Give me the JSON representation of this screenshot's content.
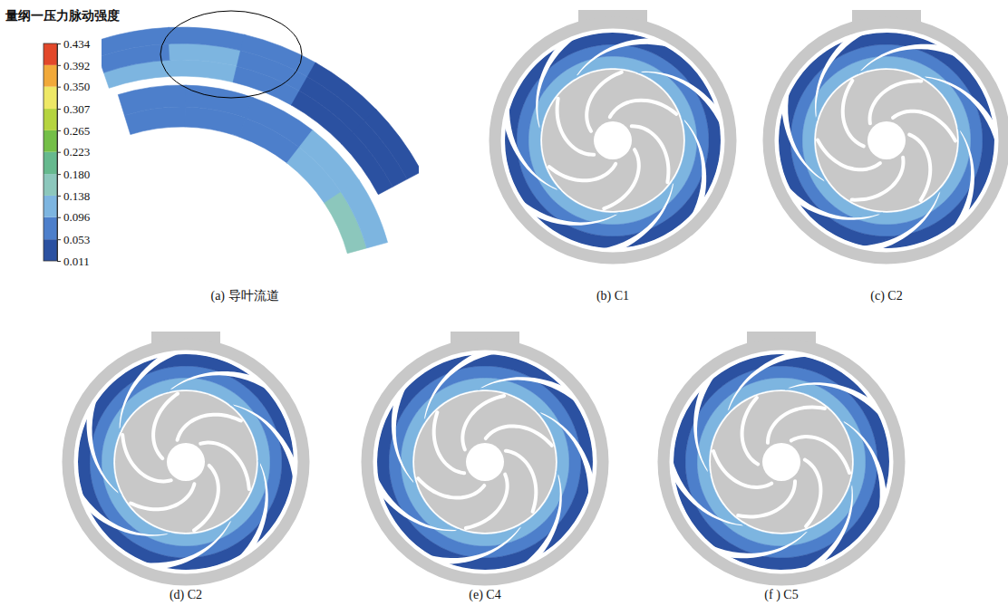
{
  "chart_data": {
    "type": "contour",
    "title": "量纲一压力脉动强度",
    "colorbar": {
      "range": [
        0.011,
        0.434
      ],
      "ticks": [
        0.011,
        0.053,
        0.096,
        0.138,
        {
          "value": 0.18,
          "label": "0.180"
        },
        0.223,
        0.265,
        0.307,
        {
          "value": 0.35,
          "label": "0.350"
        },
        0.392,
        0.434
      ],
      "colors": [
        "#2b51a1",
        "#4d7fcb",
        "#7db5e0",
        "#8cc7bc",
        "#66b98e",
        "#74bf48",
        "#b5d43f",
        "#eee866",
        "#f1a93a",
        "#e2482a"
      ]
    },
    "panels": [
      {
        "label": "(a) 导叶流道",
        "cells": [
          [
            0.075,
            0.07,
            0.09,
            0.11,
            0.15
          ],
          [
            0.08,
            0.075,
            0.085,
            0.1,
            0.12
          ],
          [
            0.1,
            0.11,
            0.08,
            0.05,
            0.03
          ],
          [
            0.09,
            0.12,
            0.07,
            0.045,
            0.03
          ],
          [
            0.07,
            0.09,
            0.06,
            0.04,
            0.025
          ]
        ]
      },
      {
        "label": "(b) C1",
        "cells": [
          [
            0.11,
            0.1,
            0.12,
            0.1,
            0.11,
            0.13,
            0.1
          ],
          [
            0.07,
            0.065,
            0.08,
            0.07,
            0.06,
            0.075,
            0.07
          ],
          [
            0.03,
            0.03,
            0.035,
            0.03,
            0.025,
            0.03,
            0.03
          ]
        ]
      },
      {
        "label": "(c) C2",
        "cells": [
          [
            0.12,
            0.11,
            0.1,
            0.13,
            0.11,
            0.1,
            0.12
          ],
          [
            0.075,
            0.07,
            0.065,
            0.08,
            0.07,
            0.06,
            0.07
          ],
          [
            0.03,
            0.035,
            0.03,
            0.03,
            0.03,
            0.025,
            0.03
          ]
        ]
      },
      {
        "label": "(d) C2",
        "cells": [
          [
            0.1,
            0.12,
            0.11,
            0.1,
            0.12,
            0.11,
            0.13
          ],
          [
            0.065,
            0.075,
            0.07,
            0.06,
            0.07,
            0.065,
            0.08
          ],
          [
            0.03,
            0.03,
            0.025,
            0.03,
            0.035,
            0.03,
            0.03
          ]
        ]
      },
      {
        "label": "(e) C4",
        "cells": [
          [
            0.11,
            0.13,
            0.1,
            0.11,
            0.1,
            0.12,
            0.11
          ],
          [
            0.07,
            0.08,
            0.065,
            0.07,
            0.06,
            0.07,
            0.065
          ],
          [
            0.025,
            0.03,
            0.03,
            0.035,
            0.03,
            0.03,
            0.03
          ]
        ]
      },
      {
        "label": "(f ) C5",
        "cells": [
          [
            0.12,
            0.1,
            0.11,
            0.12,
            0.13,
            0.1,
            0.11
          ],
          [
            0.07,
            0.06,
            0.07,
            0.075,
            0.08,
            0.065,
            0.07
          ],
          [
            0.03,
            0.03,
            0.03,
            0.025,
            0.03,
            0.035,
            0.03
          ]
        ]
      }
    ]
  }
}
